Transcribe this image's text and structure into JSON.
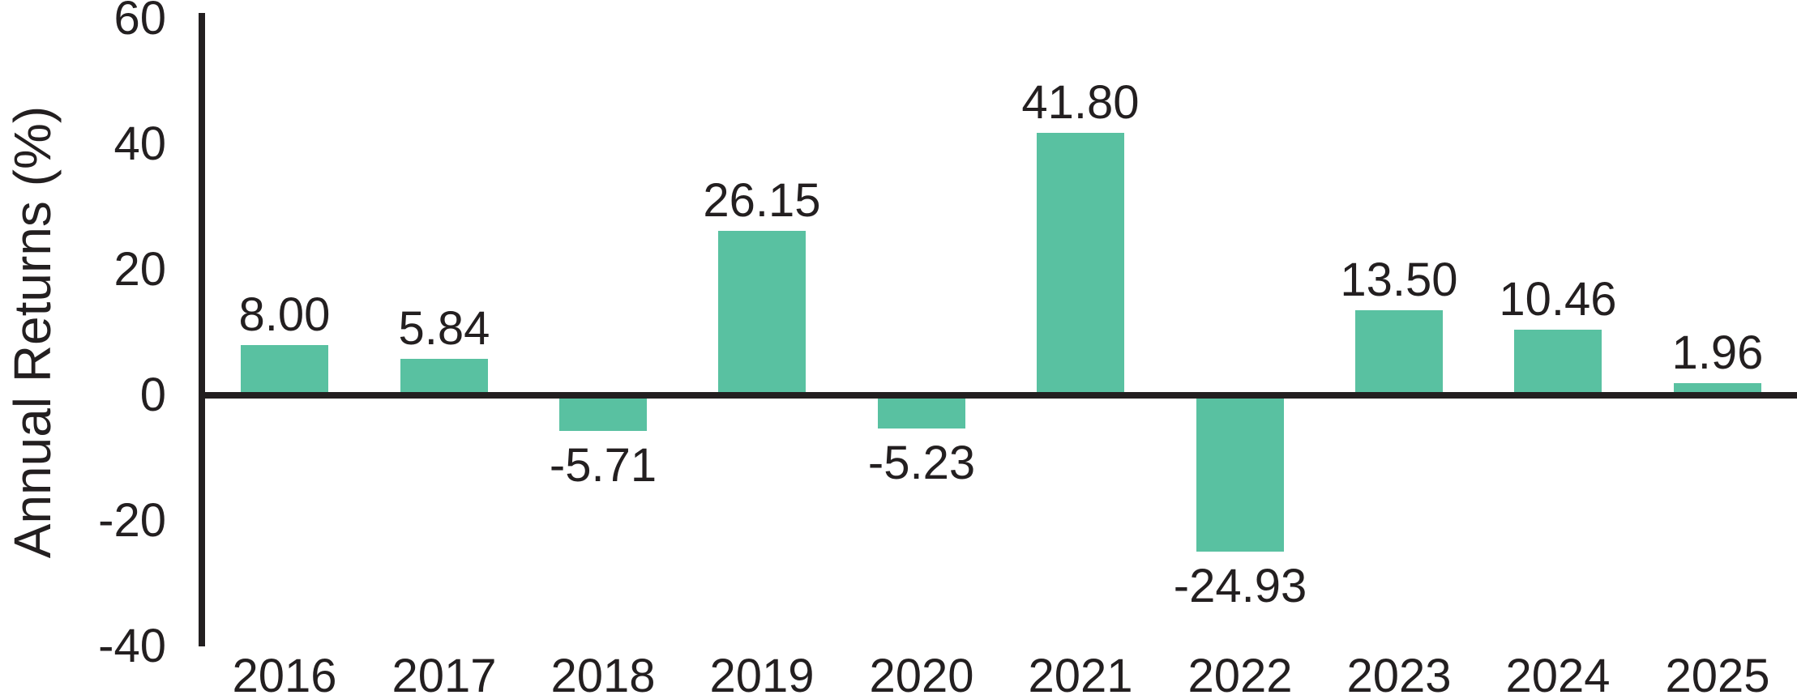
{
  "chart": {
    "ylabel": "Annual Returns (%)"
  },
  "chart_data": {
    "type": "bar",
    "title": "",
    "xlabel": "",
    "ylabel": "Annual Returns (%)",
    "categories": [
      "2016",
      "2017",
      "2018",
      "2019",
      "2020",
      "2021",
      "2022",
      "2023",
      "2024",
      "2025"
    ],
    "values": [
      8.0,
      5.84,
      -5.71,
      26.15,
      -5.23,
      41.8,
      -24.93,
      13.5,
      10.46,
      1.96
    ],
    "value_labels": [
      "8.00",
      "5.84",
      "-5.71",
      "26.15",
      "-5.23",
      "41.80",
      "-24.93",
      "13.50",
      "10.46",
      "1.96"
    ],
    "yticks": [
      {
        "value": 60,
        "label": "60"
      },
      {
        "value": 40,
        "label": "40"
      },
      {
        "value": 20,
        "label": "20"
      },
      {
        "value": 0,
        "label": "0"
      },
      {
        "value": -20,
        "label": "-20"
      },
      {
        "value": -40,
        "label": "-40"
      }
    ],
    "ylim": [
      -40,
      60
    ],
    "grid": false,
    "legend": null,
    "bar_color": "#59c1a1",
    "axis_color": "#231f20",
    "text_color": "#231f20"
  }
}
